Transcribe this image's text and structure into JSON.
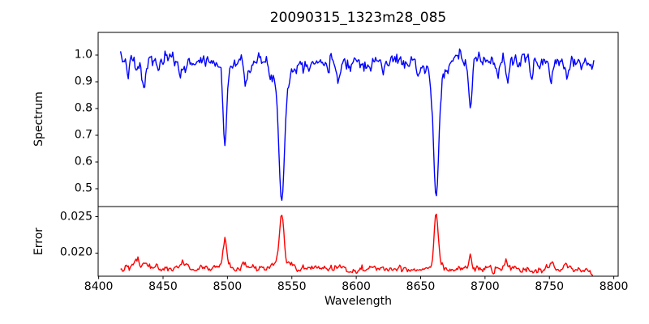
{
  "figure": {
    "background": "#ffffff",
    "axes_color": "#000000"
  },
  "chart_data": {
    "type": "line",
    "title": "20090315_1323m28_085",
    "xlabel": "Wavelength",
    "xlim": [
      8399.6,
      8803.4
    ],
    "xticks": [
      8400,
      8450,
      8500,
      8550,
      8600,
      8650,
      8700,
      8750,
      8800
    ],
    "x_range_data": [
      8417,
      8785
    ],
    "x_step": 0.75,
    "grid": false,
    "legend": "none",
    "subplots": [
      {
        "name": "spectrum",
        "ylabel": "Spectrum",
        "color": "#0000ff",
        "ylim": [
          0.4333,
          1.0848
        ],
        "yticks": [
          0.5,
          0.6,
          0.7,
          0.8,
          0.9,
          1.0
        ],
        "ytick_decimals": 1,
        "continuum": 0.978,
        "noise_sigma": 0.013,
        "noise_ar": 0.5,
        "seed": 7,
        "lines": [
          {
            "center": 8423.0,
            "depth": 0.04,
            "sigma": 1.0
          },
          {
            "center": 8429.5,
            "depth": 0.05,
            "sigma": 1.2
          },
          {
            "center": 8435.0,
            "depth": 0.1,
            "sigma": 1.5
          },
          {
            "center": 8446.0,
            "depth": 0.035,
            "sigma": 1.0
          },
          {
            "center": 8463.0,
            "depth": 0.05,
            "sigma": 1.1
          },
          {
            "center": 8468.5,
            "depth": 0.045,
            "sigma": 1.0
          },
          {
            "center": 8498.0,
            "depth": 0.27,
            "sigma": 1.3
          },
          {
            "center": 8498.0,
            "depth": 0.04,
            "sigma": 4.0
          },
          {
            "center": 8514.0,
            "depth": 0.07,
            "sigma": 1.3
          },
          {
            "center": 8542.1,
            "depth": 0.44,
            "sigma": 2.1
          },
          {
            "center": 8542.1,
            "depth": 0.08,
            "sigma": 7.0
          },
          {
            "center": 8578.0,
            "depth": 0.055,
            "sigma": 1.2
          },
          {
            "center": 8586.0,
            "depth": 0.06,
            "sigma": 1.3
          },
          {
            "center": 8611.0,
            "depth": 0.04,
            "sigma": 1.0
          },
          {
            "center": 8621.0,
            "depth": 0.045,
            "sigma": 1.1
          },
          {
            "center": 8648.0,
            "depth": 0.055,
            "sigma": 1.2
          },
          {
            "center": 8662.1,
            "depth": 0.43,
            "sigma": 1.9
          },
          {
            "center": 8662.1,
            "depth": 0.08,
            "sigma": 6.5
          },
          {
            "center": 8688.6,
            "depth": 0.17,
            "sigma": 1.3
          },
          {
            "center": 8710.0,
            "depth": 0.05,
            "sigma": 1.0
          },
          {
            "center": 8717.5,
            "depth": 0.07,
            "sigma": 1.2
          },
          {
            "center": 8736.0,
            "depth": 0.06,
            "sigma": 1.2
          },
          {
            "center": 8751.0,
            "depth": 0.075,
            "sigma": 1.3
          },
          {
            "center": 8764.0,
            "depth": 0.05,
            "sigma": 1.0
          }
        ]
      },
      {
        "name": "error",
        "ylabel": "Error",
        "color": "#ff0000",
        "ylim": [
          0.01683,
          0.02639
        ],
        "yticks": [
          0.02,
          0.025
        ],
        "ytick_decimals": 3,
        "baseline_start": 0.018,
        "baseline_end": 0.0177,
        "noise_sigma": 0.00022,
        "noise_ar": 0.5,
        "seed": 42,
        "end_drop": {
          "start": 8776,
          "amount": 0.0006
        },
        "peaks": [
          {
            "center": 8423.0,
            "height": 0.0006,
            "sigma": 1.5
          },
          {
            "center": 8430.0,
            "height": 0.0011,
            "sigma": 1.5
          },
          {
            "center": 8436.0,
            "height": 0.0009,
            "sigma": 1.5
          },
          {
            "center": 8465.0,
            "height": 0.0008,
            "sigma": 1.2
          },
          {
            "center": 8498.0,
            "height": 0.0034,
            "sigma": 1.4
          },
          {
            "center": 8498.0,
            "height": 0.0004,
            "sigma": 4.0
          },
          {
            "center": 8514.0,
            "height": 0.0006,
            "sigma": 1.3
          },
          {
            "center": 8542.1,
            "height": 0.0066,
            "sigma": 1.7
          },
          {
            "center": 8542.1,
            "height": 0.0007,
            "sigma": 6.0
          },
          {
            "center": 8586.0,
            "height": 0.0005,
            "sigma": 1.5
          },
          {
            "center": 8662.1,
            "height": 0.007,
            "sigma": 1.6
          },
          {
            "center": 8662.1,
            "height": 0.0007,
            "sigma": 5.0
          },
          {
            "center": 8688.6,
            "height": 0.0022,
            "sigma": 1.2
          },
          {
            "center": 8717.0,
            "height": 0.0007,
            "sigma": 1.5
          },
          {
            "center": 8752.0,
            "height": 0.0006,
            "sigma": 2.0
          },
          {
            "center": 8762.0,
            "height": 0.0007,
            "sigma": 2.0
          }
        ]
      }
    ]
  }
}
